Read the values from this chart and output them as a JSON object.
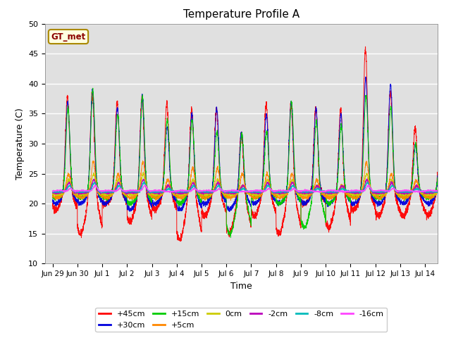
{
  "title": "Temperature Profile A",
  "xlabel": "Time",
  "ylabel": "Temperature (C)",
  "xlim": [
    -0.3,
    15.5
  ],
  "ylim": [
    10,
    50
  ],
  "yticks": [
    10,
    15,
    20,
    25,
    30,
    35,
    40,
    45,
    50
  ],
  "xtick_positions": [
    0,
    1,
    2,
    3,
    4,
    5,
    6,
    7,
    8,
    9,
    10,
    11,
    12,
    13,
    14,
    15
  ],
  "xtick_labels": [
    "Jun 29",
    "Jun 30",
    "Jul 1",
    "Jul 2",
    "Jul 3",
    "Jul 4",
    "Jul 5",
    "Jul 6",
    "Jul 7",
    "Jul 8",
    "Jul 9",
    "Jul 10",
    "Jul 11",
    "Jul 12",
    "Jul 13",
    "Jul 14"
  ],
  "series_names": [
    "+45cm",
    "+30cm",
    "+15cm",
    "+5cm",
    "0cm",
    "-2cm",
    "-8cm",
    "-16cm"
  ],
  "series_colors": [
    "#ff0000",
    "#0000dd",
    "#00cc00",
    "#ff8800",
    "#cccc00",
    "#bb00bb",
    "#00bbbb",
    "#ff44ff"
  ],
  "bg_color": "#e0e0e0",
  "annotation_text": "GT_met",
  "legend_ncol_row1": 6,
  "legend_ncol_row2": 2
}
